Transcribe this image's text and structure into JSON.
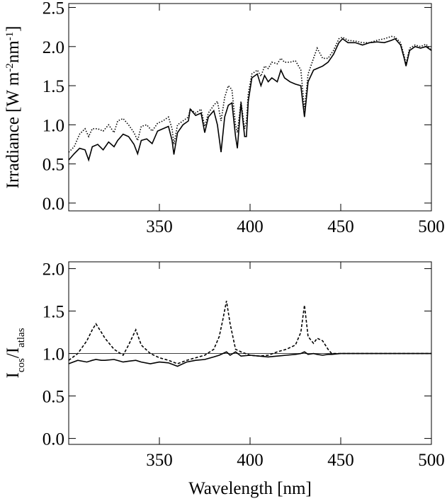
{
  "chart_data": [
    {
      "type": "line",
      "y_label": [
        {
          "text": "Irradiance [W m"
        },
        {
          "text": "-2",
          "script": "super"
        },
        {
          "text": "nm"
        },
        {
          "text": "-1",
          "script": "super"
        },
        {
          "text": "]"
        }
      ],
      "x": [
        300,
        303,
        306,
        309,
        311,
        313,
        316,
        319,
        322,
        325,
        327,
        330,
        333,
        336,
        338,
        340,
        343,
        346,
        349,
        352,
        355,
        357,
        358,
        360,
        363,
        366,
        367,
        370,
        373,
        375,
        377,
        380,
        382,
        384,
        386,
        388,
        390,
        392,
        393,
        395,
        397,
        398,
        399,
        401,
        404,
        406,
        408,
        410,
        412,
        415,
        417,
        419,
        422,
        425,
        428,
        430,
        432,
        435,
        437,
        440,
        443,
        446,
        449,
        451,
        454,
        458,
        462,
        466,
        470,
        474,
        478,
        480,
        483,
        485,
        486,
        488,
        491,
        494,
        497,
        500
      ],
      "series": [
        {
          "color": "#000000",
          "dash": "solid",
          "values": [
            0.55,
            0.63,
            0.7,
            0.68,
            0.55,
            0.72,
            0.75,
            0.68,
            0.78,
            0.72,
            0.8,
            0.88,
            0.85,
            0.75,
            0.63,
            0.8,
            0.82,
            0.76,
            0.92,
            0.95,
            0.98,
            0.8,
            0.62,
            0.9,
            1.0,
            1.05,
            1.2,
            1.12,
            1.15,
            0.9,
            1.1,
            1.18,
            1.0,
            0.65,
            1.1,
            1.25,
            1.28,
            0.85,
            0.7,
            1.28,
            0.85,
            0.85,
            1.3,
            1.6,
            1.65,
            1.5,
            1.63,
            1.55,
            1.6,
            1.55,
            1.7,
            1.6,
            1.55,
            1.52,
            1.5,
            1.1,
            1.55,
            1.7,
            1.72,
            1.75,
            1.8,
            1.9,
            2.05,
            2.1,
            2.05,
            2.05,
            2.02,
            2.05,
            2.06,
            2.05,
            2.08,
            2.1,
            2.02,
            1.85,
            1.75,
            1.95,
            2.0,
            1.98,
            2.0,
            1.95
          ]
        },
        {
          "color": "#000000",
          "dash": "dotted",
          "values": [
            0.65,
            0.72,
            0.88,
            0.95,
            0.85,
            0.95,
            0.95,
            0.92,
            1.0,
            0.9,
            1.05,
            1.08,
            1.0,
            0.9,
            0.8,
            0.98,
            1.0,
            0.92,
            1.02,
            1.05,
            1.1,
            0.95,
            0.75,
            1.0,
            1.05,
            1.1,
            1.2,
            1.15,
            1.2,
            0.98,
            1.15,
            1.25,
            1.3,
            1.05,
            1.35,
            1.5,
            1.45,
            1.0,
            0.9,
            1.3,
            0.95,
            1.05,
            1.4,
            1.65,
            1.7,
            1.62,
            1.75,
            1.72,
            1.8,
            1.78,
            1.85,
            1.8,
            1.8,
            1.82,
            1.7,
            1.2,
            1.65,
            1.85,
            1.98,
            1.85,
            1.85,
            1.95,
            2.1,
            2.12,
            2.08,
            2.07,
            2.05,
            2.05,
            2.08,
            2.1,
            2.13,
            2.12,
            2.05,
            1.88,
            1.78,
            1.98,
            2.02,
            2.0,
            2.03,
            1.95
          ]
        }
      ],
      "xlim": [
        300,
        500
      ],
      "xticks": [
        350,
        400,
        450,
        500
      ],
      "ylim": [
        -0.1,
        2.55
      ],
      "yticks": [
        {
          "value": 0,
          "label": "0.0"
        },
        0.5,
        {
          "value": 1,
          "label": "1.0"
        },
        1.5,
        {
          "value": 2,
          "label": "2.0"
        },
        2.5
      ]
    },
    {
      "type": "line",
      "y_label": [
        {
          "text": "I"
        },
        {
          "text": "cos",
          "script": "sub"
        },
        {
          "text": "/I"
        },
        {
          "text": "atlas",
          "script": "sub"
        }
      ],
      "x_label": "Wavelength [nm]",
      "x": [
        300,
        305,
        310,
        313,
        315,
        318,
        320,
        325,
        330,
        333,
        337,
        340,
        345,
        350,
        355,
        360,
        365,
        370,
        375,
        380,
        383,
        385,
        387,
        389,
        392,
        395,
        400,
        405,
        410,
        415,
        420,
        425,
        428,
        430,
        432,
        435,
        437,
        440,
        443,
        445,
        450,
        455,
        460,
        465,
        470,
        475,
        480,
        485,
        490,
        495,
        500
      ],
      "series": [
        {
          "color": "#000000",
          "dash": "solid",
          "values": [
            0.88,
            0.92,
            0.9,
            0.92,
            0.93,
            0.92,
            0.92,
            0.93,
            0.9,
            0.91,
            0.92,
            0.9,
            0.88,
            0.9,
            0.89,
            0.85,
            0.9,
            0.92,
            0.93,
            0.96,
            0.98,
            1.0,
            1.02,
            0.98,
            1.02,
            0.97,
            0.98,
            0.97,
            0.96,
            0.97,
            0.98,
            0.99,
            1.0,
            1.02,
            0.99,
            1.0,
            0.99,
            0.98,
            0.99,
            0.99,
            1.0,
            1.0,
            1.0,
            1.0,
            1.0,
            1.0,
            1.0,
            1.0,
            1.0,
            1.0,
            1.0
          ]
        },
        {
          "color": "#000000",
          "dash": "dashed",
          "values": [
            0.92,
            1.0,
            1.15,
            1.28,
            1.35,
            1.25,
            1.18,
            1.05,
            0.98,
            1.1,
            1.28,
            1.1,
            1.0,
            0.95,
            0.92,
            0.88,
            0.92,
            0.95,
            0.98,
            1.05,
            1.2,
            1.4,
            1.62,
            1.35,
            1.05,
            1.02,
            0.98,
            0.97,
            0.98,
            1.02,
            1.05,
            1.1,
            1.25,
            1.57,
            1.2,
            1.12,
            1.18,
            1.15,
            1.05,
            1.0,
            1.0,
            1.0,
            1.0,
            1.0,
            1.0,
            1.0,
            1.0,
            1.0,
            1.0,
            1.0,
            1.0
          ]
        }
      ],
      "reference_line": 1,
      "xlim": [
        300,
        500
      ],
      "xticks": [
        350,
        400,
        450,
        500
      ],
      "ylim": [
        -0.07,
        2.08
      ],
      "yticks": [
        {
          "value": 0,
          "label": "0.0"
        },
        0.5,
        {
          "value": 1,
          "label": "1.0"
        },
        1.5,
        {
          "value": 2,
          "label": "2.0"
        }
      ]
    }
  ]
}
